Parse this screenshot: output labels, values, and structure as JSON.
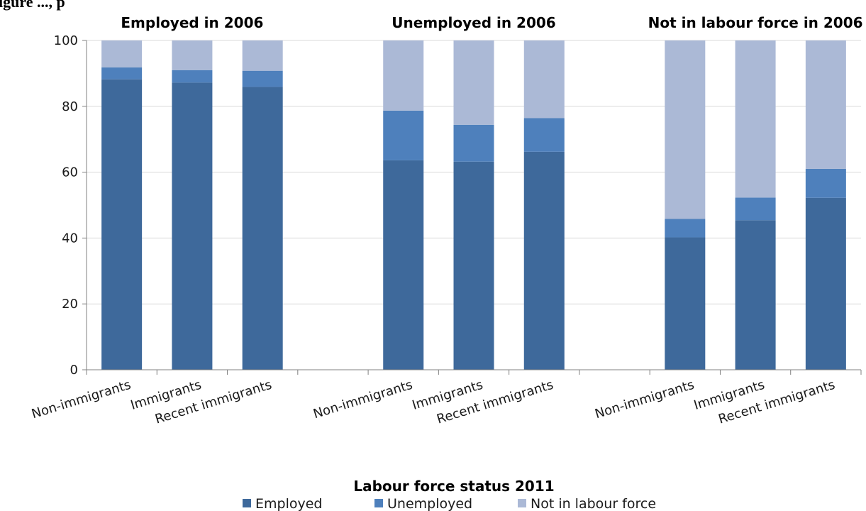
{
  "page_title_partial": "igure ..., p",
  "colors": {
    "employed": "#3e699b",
    "unemployed": "#4e80bc",
    "not_in_labour_force": "#abb9d6",
    "grid": "#d9d9d9",
    "axis": "#808080"
  },
  "chart_data": {
    "type": "bar",
    "stacked": true,
    "xlabel": "Labour force status 2011",
    "ylabel": "",
    "ylim": [
      0,
      100
    ],
    "yticks": [
      0,
      20,
      40,
      60,
      80,
      100
    ],
    "grid": true,
    "legend_position": "bottom",
    "groups": [
      {
        "title": "Employed in 2006",
        "categories": [
          "Non-immigrants",
          "Immigrants",
          "Recent immigrants"
        ],
        "series": [
          {
            "name": "Employed",
            "values": [
              88.2,
              87.2,
              85.9
            ]
          },
          {
            "name": "Unemployed",
            "values": [
              3.6,
              3.8,
              4.9
            ]
          },
          {
            "name": "Not in labour force",
            "values": [
              8.2,
              9.0,
              9.2
            ]
          }
        ]
      },
      {
        "title": "Unemployed in 2006",
        "categories": [
          "Non-immigrants",
          "Immigrants",
          "Recent immigrants"
        ],
        "series": [
          {
            "name": "Employed",
            "values": [
              63.6,
              63.2,
              66.2
            ]
          },
          {
            "name": "Unemployed",
            "values": [
              15.1,
              11.2,
              10.2
            ]
          },
          {
            "name": "Not in labour force",
            "values": [
              21.3,
              25.6,
              23.6
            ]
          }
        ]
      },
      {
        "title": "Not in labour force in 2006",
        "categories": [
          "Non-immigrants",
          "Immigrants",
          "Recent immigrants"
        ],
        "series": [
          {
            "name": "Employed",
            "values": [
              40.2,
              45.4,
              52.2
            ]
          },
          {
            "name": "Unemployed",
            "values": [
              5.6,
              6.9,
              8.8
            ]
          },
          {
            "name": "Not in labour force",
            "values": [
              54.2,
              47.7,
              39.0
            ]
          }
        ]
      }
    ],
    "legend": [
      "Employed",
      "Unemployed",
      "Not in labour force"
    ]
  }
}
